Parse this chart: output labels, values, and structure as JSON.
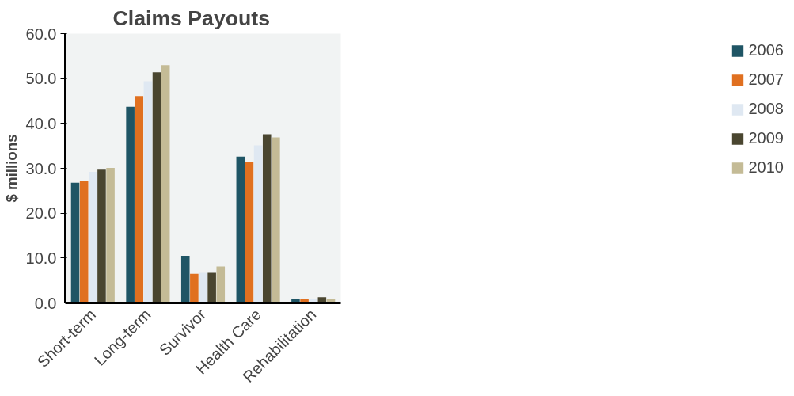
{
  "chart_data": {
    "type": "bar",
    "title": "Claims Payouts",
    "ylabel": "$ millions",
    "categories": [
      "Short-term",
      "Long-term",
      "Survivor",
      "Health Care",
      "Rehabilitation"
    ],
    "series": [
      {
        "name": "2006",
        "color": "#1f5565",
        "values": [
          26.8,
          43.7,
          10.5,
          32.6,
          0.8
        ]
      },
      {
        "name": "2007",
        "color": "#e07020",
        "values": [
          27.2,
          46.1,
          6.5,
          31.4,
          0.8
        ]
      },
      {
        "name": "2008",
        "color": "#dfe8f2",
        "values": [
          29.2,
          49.4,
          6.7,
          35.1,
          0.8
        ]
      },
      {
        "name": "2009",
        "color": "#4a4630",
        "values": [
          29.7,
          51.4,
          6.7,
          37.6,
          1.3
        ]
      },
      {
        "name": "2010",
        "color": "#c4bb96",
        "values": [
          30.1,
          53.0,
          8.1,
          36.9,
          0.8
        ]
      }
    ],
    "ylim": [
      0,
      60
    ],
    "yticks": [
      {
        "value": 0,
        "label": "0.0"
      },
      {
        "value": 10,
        "label": "10.0"
      },
      {
        "value": 20,
        "label": "20.0"
      },
      {
        "value": 30,
        "label": "30.0"
      },
      {
        "value": 40,
        "label": "40.0"
      },
      {
        "value": 50,
        "label": "50.0"
      },
      {
        "value": 60,
        "label": "60.0"
      }
    ],
    "grid": false,
    "legend": "right"
  }
}
